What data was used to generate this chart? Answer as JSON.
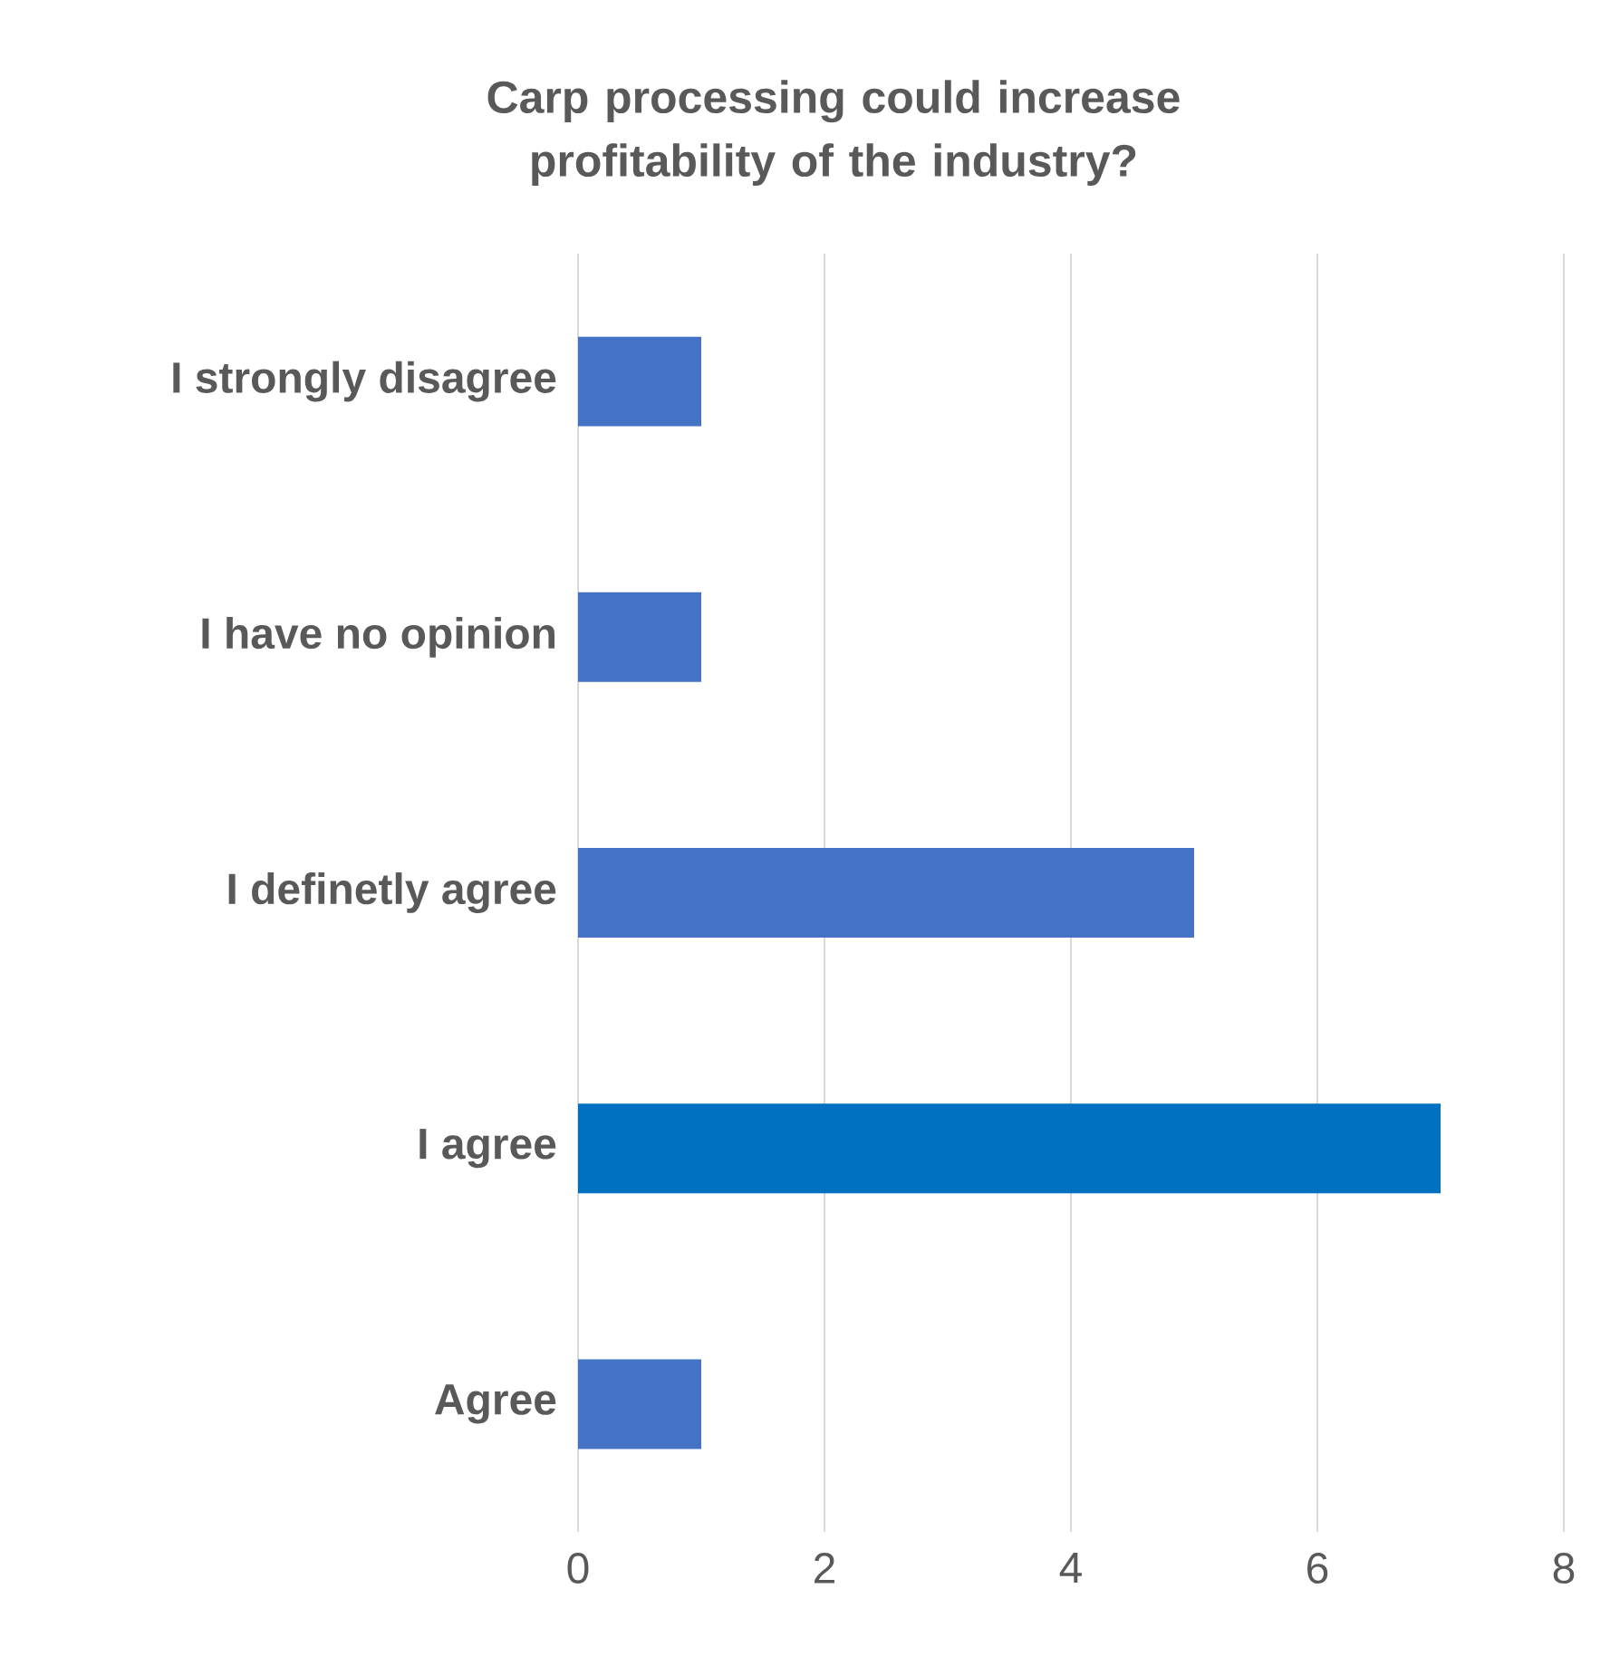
{
  "chart_data": {
    "type": "bar",
    "orientation": "horizontal",
    "title": "Carp processing could increase profitability of the industry?",
    "categories": [
      "I strongly disagree",
      "I have no opinion",
      "I definetly agree",
      "I agree",
      "Agree"
    ],
    "values": [
      1,
      1,
      5,
      7,
      1
    ],
    "colors": [
      "#4472c4",
      "#4472c4",
      "#4472c4",
      "#0070c0",
      "#4472c4"
    ],
    "xlim": [
      0,
      8
    ],
    "xticks": [
      0,
      2,
      4,
      6,
      8
    ],
    "grid": "x"
  }
}
